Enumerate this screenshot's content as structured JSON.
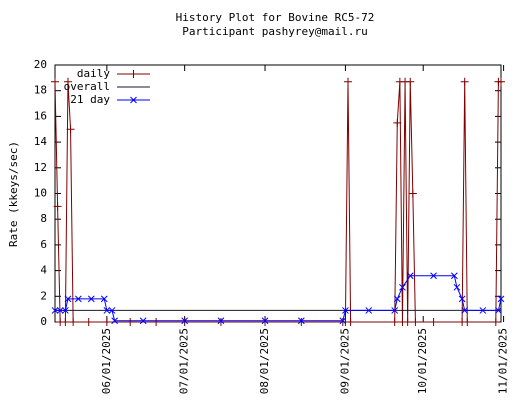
{
  "chart_data": {
    "type": "line",
    "title": "History Plot for Bovine RC5-72",
    "subtitle": "Participant pashyrey@mail.ru",
    "y_label": "Rate (kkeys/sec)",
    "xlim": [
      "05/12/2025",
      "10/31/2025"
    ],
    "xticks": [
      "06/01/2025",
      "07/01/2025",
      "08/01/2025",
      "09/01/2025",
      "10/01/2025",
      "11/01/2025"
    ],
    "ylim": [
      0,
      20
    ],
    "yticks": [
      0,
      2,
      4,
      6,
      8,
      10,
      12,
      14,
      16,
      18,
      20
    ],
    "legend": "top-left",
    "series": [
      {
        "name": "daily",
        "color": "#7f0000",
        "marker": "plus",
        "x": [
          "05/12/2025",
          "05/13/2025",
          "05/14/2025",
          "05/16/2025",
          "05/17/2025",
          "05/18/2025",
          "05/19/2025",
          "05/25/2025",
          "06/01/2025",
          "06/10/2025",
          "06/20/2025",
          "07/01/2025",
          "07/15/2025",
          "08/01/2025",
          "08/15/2025",
          "08/31/2025",
          "09/01/2025",
          "09/02/2025",
          "09/03/2025",
          "09/20/2025",
          "09/21/2025",
          "09/22/2025",
          "09/23/2025",
          "09/24/2025",
          "09/25/2025",
          "09/26/2025",
          "09/27/2025",
          "09/28/2025",
          "10/05/2025",
          "10/16/2025",
          "10/17/2025",
          "10/18/2025",
          "10/29/2025",
          "10/30/2025",
          "10/31/2025"
        ],
        "values": [
          18.7,
          9,
          0,
          0,
          18.7,
          15,
          0,
          0,
          0,
          0,
          0,
          0,
          0,
          0,
          0,
          0,
          0,
          18.7,
          0,
          0,
          15.5,
          18.7,
          0,
          18.7,
          0,
          18.7,
          10,
          0,
          0,
          0,
          18.7,
          0,
          0,
          18.7,
          18.7
        ]
      },
      {
        "name": "overall",
        "color": "#1a1a33",
        "marker": "none",
        "x": [
          "05/12/2025",
          "10/31/2025"
        ],
        "values": [
          0.9,
          0.9
        ]
      },
      {
        "name": "21 day",
        "color": "#0000ff",
        "marker": "cross",
        "x": [
          "05/12/2025",
          "05/14/2025",
          "05/16/2025",
          "05/17/2025",
          "05/21/2025",
          "05/26/2025",
          "05/31/2025",
          "06/01/2025",
          "06/03/2025",
          "06/04/2025",
          "06/15/2025",
          "07/01/2025",
          "07/15/2025",
          "08/01/2025",
          "08/15/2025",
          "08/31/2025",
          "09/01/2025",
          "09/10/2025",
          "09/20/2025",
          "09/21/2025",
          "09/23/2025",
          "09/26/2025",
          "10/05/2025",
          "10/13/2025",
          "10/14/2025",
          "10/16/2025",
          "10/17/2025",
          "10/24/2025",
          "10/30/2025",
          "10/31/2025"
        ],
        "values": [
          0.9,
          0.9,
          0.9,
          1.8,
          1.8,
          1.8,
          1.8,
          0.9,
          0.9,
          0.1,
          0.1,
          0.1,
          0.1,
          0.1,
          0.1,
          0.1,
          0.9,
          0.9,
          0.9,
          1.8,
          2.7,
          3.6,
          3.6,
          3.6,
          2.7,
          1.8,
          0.9,
          0.9,
          0.9,
          1.8
        ]
      }
    ]
  }
}
